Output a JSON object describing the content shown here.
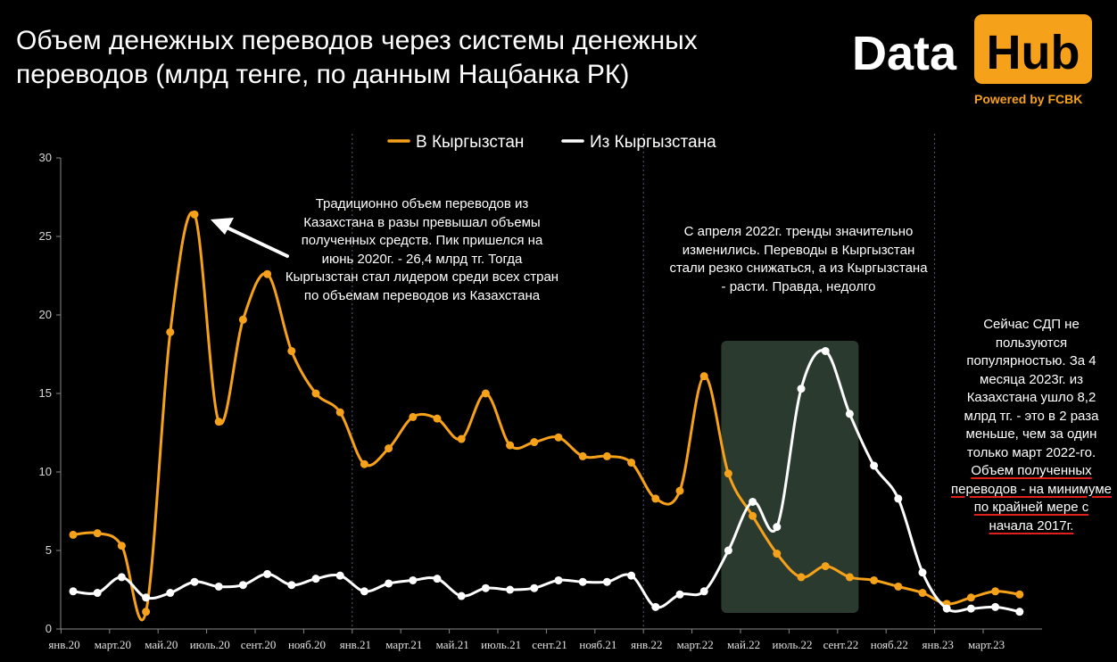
{
  "title": "Объем денежных переводов через системы денежных переводов (млрд тенге, по данным Нацбанка РК)",
  "logo": {
    "data": "Data",
    "hub": "Hub",
    "powered": "Powered by FCBK"
  },
  "colors": {
    "orange": "#f6a11a",
    "white": "#ffffff",
    "highlight": "#2a3a2f",
    "underline": "#e0201a"
  },
  "annotations": {
    "peak": "Традиционно объем переводов из Казахстана в разы превышал объемы полученных средств. Пик пришелся на июнь 2020г. - 26,4 млрд тг. Тогда Кыргызстан стал лидером среди всех стран по объемам переводов из Казахстана",
    "trend": "С апреля 2022г. тренды значительно изменились. Переводы в Кыргызстан стали резко снижаться, а из Кыргызстана - расти. Правда, недолго",
    "now_plain": "Сейчас СДП не пользуются популярностью. За 4 месяца 2023г. из Казахстана ушло 8,2 млрд тг. - это в 2 раза меньше, чем за один только март 2022-го.",
    "now_underlined": "Объем полученных переводов - на минимуме по крайней мере с начала 2017г."
  },
  "chart_data": {
    "type": "line",
    "ylim": [
      0,
      30
    ],
    "yticks": [
      0,
      5,
      10,
      15,
      20,
      25,
      30
    ],
    "xtick_labels": [
      "янв.20",
      "март.20",
      "май.20",
      "июль.20",
      "сент.20",
      "нояб.20",
      "янв.21",
      "март.21",
      "май.21",
      "июль.21",
      "сент.21",
      "нояб.21",
      "янв.22",
      "март.22",
      "май.22",
      "июль.22",
      "сент.22",
      "нояб.22",
      "янв.23",
      "март.23"
    ],
    "legend_position": "top",
    "highlight_range": [
      "апр.22",
      "сент.22"
    ],
    "series": [
      {
        "name": "В Кыргызстан",
        "color": "#f6a11a",
        "values": [
          6.0,
          6.1,
          5.3,
          1.1,
          18.9,
          26.4,
          13.2,
          19.7,
          22.6,
          17.7,
          15.0,
          13.8,
          10.5,
          11.5,
          13.5,
          13.4,
          12.1,
          15.0,
          11.7,
          11.9,
          12.2,
          11.0,
          11.0,
          10.6,
          8.3,
          8.8,
          16.1,
          9.9,
          7.2,
          4.8,
          3.3,
          4.0,
          3.3,
          3.1,
          2.7,
          2.3,
          1.6,
          2.0,
          2.4,
          2.2
        ]
      },
      {
        "name": "Из Кыргызстана",
        "color": "#ffffff",
        "values": [
          2.4,
          2.3,
          3.3,
          2.0,
          2.3,
          3.0,
          2.7,
          2.8,
          3.5,
          2.8,
          3.2,
          3.4,
          2.4,
          2.9,
          3.1,
          3.2,
          2.1,
          2.6,
          2.5,
          2.6,
          3.1,
          3.0,
          3.0,
          3.4,
          1.4,
          2.2,
          2.4,
          5.0,
          8.1,
          6.5,
          15.3,
          17.7,
          13.7,
          10.4,
          8.3,
          3.6,
          1.3,
          1.3,
          1.4,
          1.1
        ]
      }
    ]
  }
}
